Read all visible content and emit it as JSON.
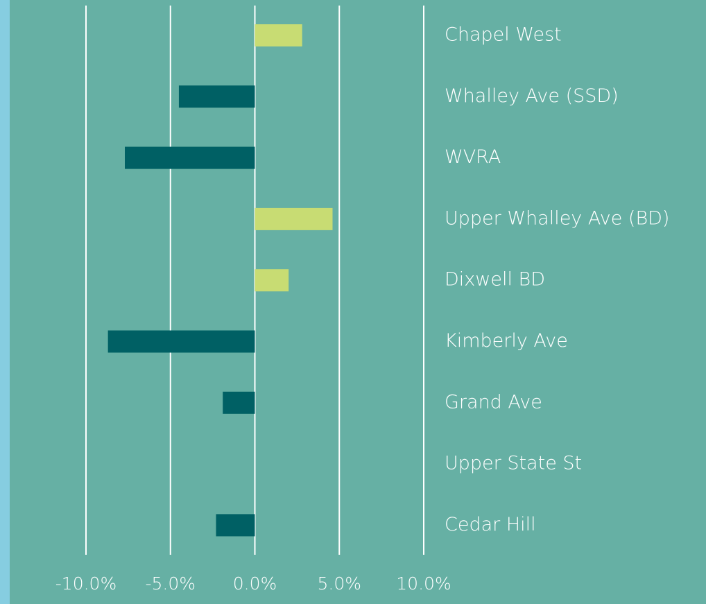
{
  "chart_data": {
    "type": "barh",
    "categories": [
      "Chapel West",
      "Whalley Ave (SSD)",
      "WVRA",
      "Upper Whalley Ave (BD)",
      "Dixwell BD",
      "Kimberly Ave",
      "Grand Ave",
      "Upper State St",
      "Cedar Hill"
    ],
    "values": [
      2.8,
      -4.5,
      -7.7,
      4.6,
      2.0,
      -8.7,
      -1.9,
      0,
      -2.3
    ],
    "positive_color": "#c8dc73",
    "negative_color": "#006064",
    "xlim": [
      -10,
      10
    ],
    "xticks": [
      {
        "value": -10,
        "label": "-10.0%"
      },
      {
        "value": -5,
        "label": "-5.0%"
      },
      {
        "value": 0,
        "label": "0.0%"
      },
      {
        "value": 5,
        "label": "5.0%"
      },
      {
        "value": 10,
        "label": "10.0%"
      }
    ],
    "grid": true
  }
}
